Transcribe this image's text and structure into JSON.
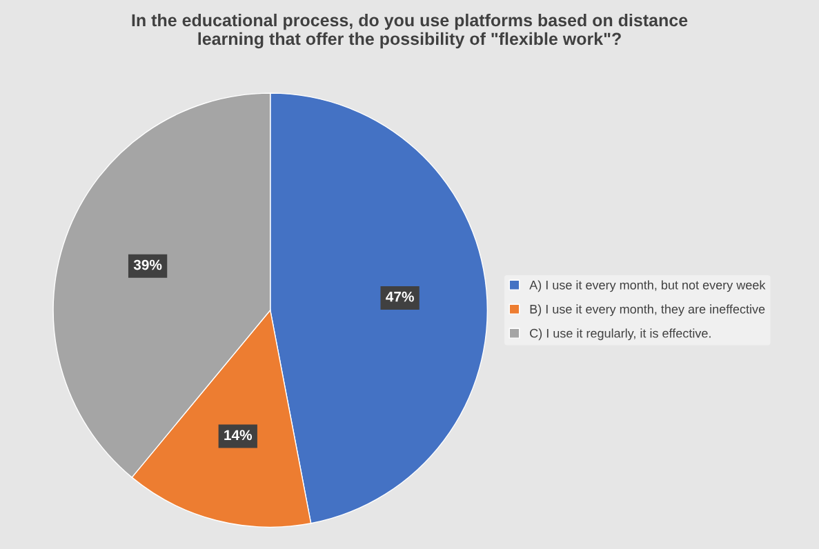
{
  "chart_data": {
    "type": "pie",
    "title": "In the educational process, do you use platforms based on distance\nlearning that offer the possibility of \"flexible work\"?",
    "categories": [
      "A) I use it every month, but not every week",
      "B) I use it every month, they are ineffective",
      "C) I use it regularly, it is effective."
    ],
    "values": [
      47,
      14,
      39
    ],
    "colors": [
      "#4472c4",
      "#ed7d31",
      "#a5a5a5"
    ],
    "value_labels": [
      "47%",
      "14%",
      "39%"
    ],
    "legend": "right"
  }
}
